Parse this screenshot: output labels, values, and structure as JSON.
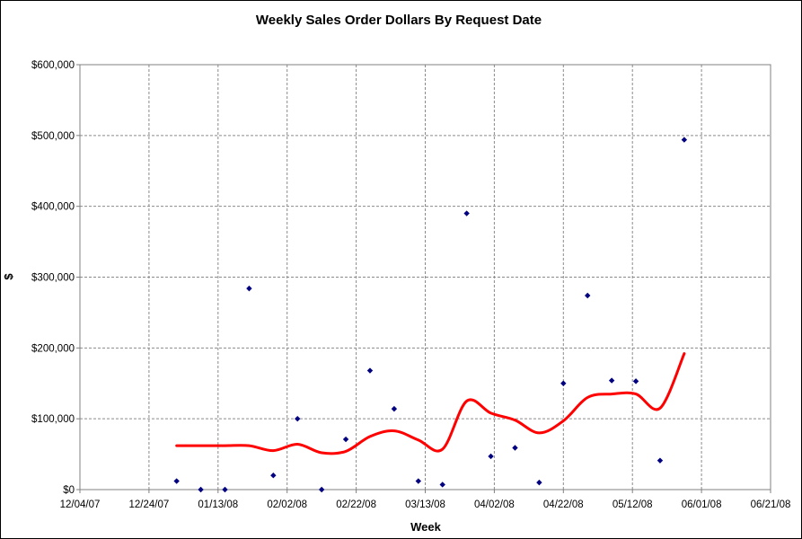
{
  "chart_data": {
    "type": "scatter",
    "title": "Weekly Sales Order Dollars By Request Date",
    "xlabel": "Week",
    "ylabel": "$",
    "x_ticks": [
      "12/04/07",
      "12/24/07",
      "01/13/08",
      "02/02/08",
      "02/22/08",
      "03/13/08",
      "04/02/08",
      "04/22/08",
      "05/12/08",
      "06/01/08",
      "06/21/08"
    ],
    "y_ticks": [
      "$0",
      "$100,000",
      "$200,000",
      "$300,000",
      "$400,000",
      "$500,000",
      "$600,000"
    ],
    "xlim": [
      "2007-12-04",
      "2008-06-21"
    ],
    "ylim": [
      0,
      600000
    ],
    "grid": true,
    "series": [
      {
        "type": "scatter",
        "color": "#000080",
        "marker": "diamond",
        "points": [
          {
            "x": "2008-01-01",
            "y": 12000
          },
          {
            "x": "2008-01-08",
            "y": 0
          },
          {
            "x": "2008-01-15",
            "y": 0
          },
          {
            "x": "2008-01-22",
            "y": 284000
          },
          {
            "x": "2008-01-29",
            "y": 20000
          },
          {
            "x": "2008-02-05",
            "y": 100000
          },
          {
            "x": "2008-02-12",
            "y": 0
          },
          {
            "x": "2008-02-19",
            "y": 71000
          },
          {
            "x": "2008-02-26",
            "y": 168000
          },
          {
            "x": "2008-03-04",
            "y": 114000
          },
          {
            "x": "2008-03-11",
            "y": 12000
          },
          {
            "x": "2008-03-18",
            "y": 7000
          },
          {
            "x": "2008-03-25",
            "y": 390000
          },
          {
            "x": "2008-04-01",
            "y": 47000
          },
          {
            "x": "2008-04-08",
            "y": 59000
          },
          {
            "x": "2008-04-15",
            "y": 10000
          },
          {
            "x": "2008-04-22",
            "y": 150000
          },
          {
            "x": "2008-04-29",
            "y": 274000
          },
          {
            "x": "2008-05-06",
            "y": 154000
          },
          {
            "x": "2008-05-13",
            "y": 153000
          },
          {
            "x": "2008-05-20",
            "y": 41000
          },
          {
            "x": "2008-05-27",
            "y": 494000
          }
        ]
      },
      {
        "type": "line",
        "color": "#ff0000",
        "smooth": true,
        "points": [
          {
            "x": "2008-01-01",
            "y": 62000
          },
          {
            "x": "2008-01-08",
            "y": 62000
          },
          {
            "x": "2008-01-15",
            "y": 62000
          },
          {
            "x": "2008-01-22",
            "y": 62000
          },
          {
            "x": "2008-01-29",
            "y": 55000
          },
          {
            "x": "2008-02-05",
            "y": 64000
          },
          {
            "x": "2008-02-12",
            "y": 52000
          },
          {
            "x": "2008-02-19",
            "y": 54000
          },
          {
            "x": "2008-02-26",
            "y": 75000
          },
          {
            "x": "2008-03-04",
            "y": 83000
          },
          {
            "x": "2008-03-11",
            "y": 70000
          },
          {
            "x": "2008-03-18",
            "y": 57000
          },
          {
            "x": "2008-03-25",
            "y": 125000
          },
          {
            "x": "2008-04-01",
            "y": 108000
          },
          {
            "x": "2008-04-08",
            "y": 98000
          },
          {
            "x": "2008-04-15",
            "y": 80000
          },
          {
            "x": "2008-04-22",
            "y": 97000
          },
          {
            "x": "2008-04-29",
            "y": 130000
          },
          {
            "x": "2008-05-06",
            "y": 135000
          },
          {
            "x": "2008-05-13",
            "y": 135000
          },
          {
            "x": "2008-05-20",
            "y": 115000
          },
          {
            "x": "2008-05-27",
            "y": 192000
          }
        ]
      }
    ]
  }
}
